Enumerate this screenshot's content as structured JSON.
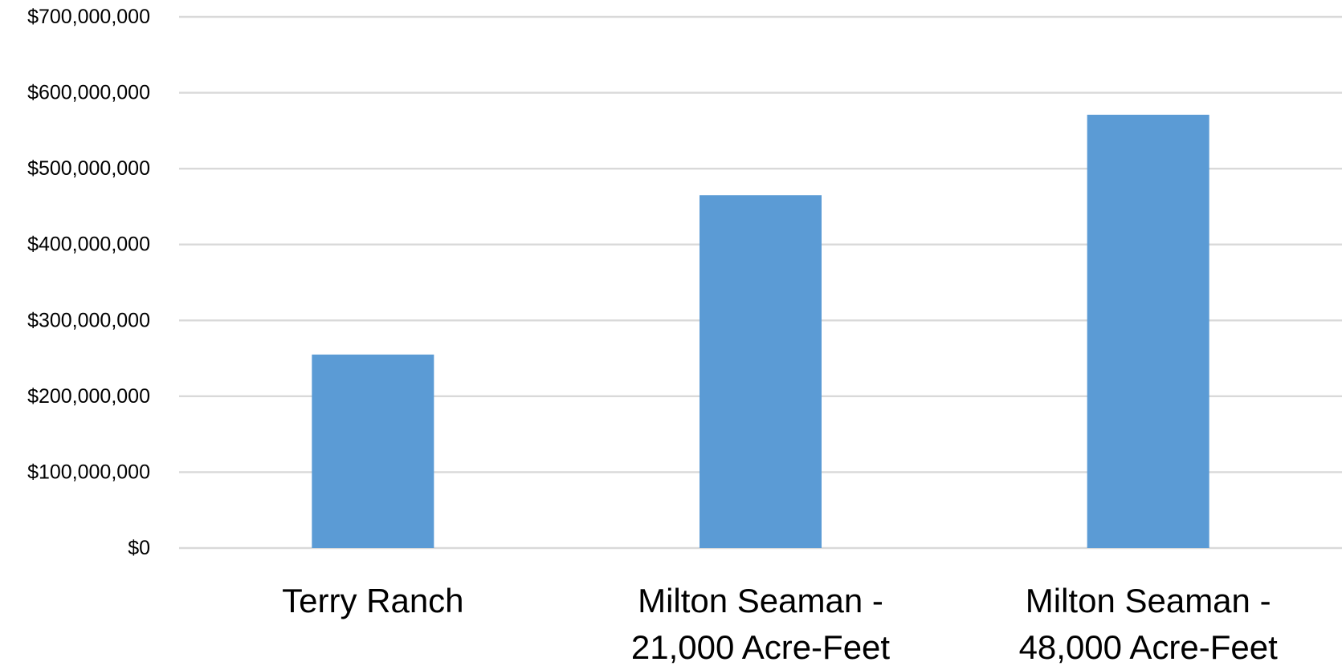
{
  "chart_data": {
    "type": "bar",
    "title": "",
    "xlabel": "",
    "ylabel": "",
    "categories": [
      [
        "Terry Ranch"
      ],
      [
        "Milton Seaman -",
        "21,000 Acre-Feet"
      ],
      [
        "Milton Seaman -",
        "48,000 Acre-Feet"
      ]
    ],
    "values": [
      255000000,
      465000000,
      571000000
    ],
    "ylim": [
      0,
      700000000
    ],
    "yticks": [
      {
        "value": 0,
        "label": "$0"
      },
      {
        "value": 100000000,
        "label": "$100,000,000"
      },
      {
        "value": 200000000,
        "label": "$200,000,000"
      },
      {
        "value": 300000000,
        "label": "$300,000,000"
      },
      {
        "value": 400000000,
        "label": "$400,000,000"
      },
      {
        "value": 500000000,
        "label": "$500,000,000"
      },
      {
        "value": 600000000,
        "label": "$600,000,000"
      },
      {
        "value": 700000000,
        "label": "$700,000,000"
      }
    ],
    "grid": true,
    "legend": "none",
    "bar_color": "#5b9bd5",
    "grid_color": "#d9d9d9"
  }
}
